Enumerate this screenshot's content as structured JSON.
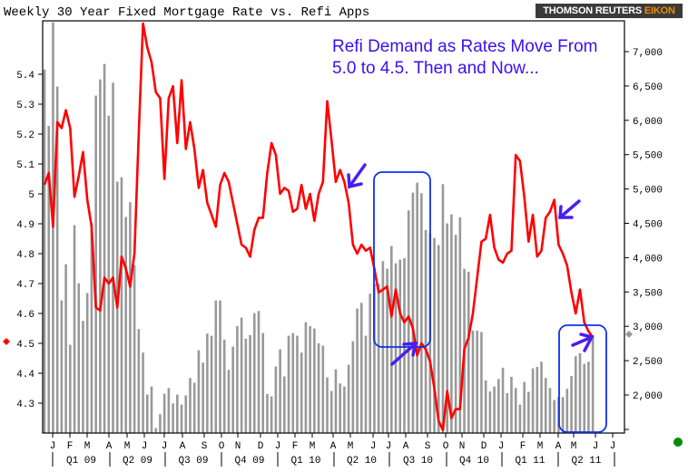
{
  "title": "Weekly 30 Year Fixed Mortgage Rate vs. Refi Apps",
  "logo": {
    "text": "THOMSON REUTERS EIKON",
    "brand": "THOMSON REUTERS",
    "product": "EIKON"
  },
  "annotation": {
    "line1": "Refi Demand as Rates Move From",
    "line2": "5.0 to 4.5.  Then and Now..."
  },
  "colors": {
    "rate_line": "#ff0000",
    "refi_bars": "#999999",
    "annotation": "#3a10f0",
    "highlight_box": "#1030f0",
    "status_dot": "#0a8a0a"
  },
  "chart_data": {
    "type": "bar+line",
    "title": "Weekly 30 Year Fixed Mortgage Rate vs. Refi Apps",
    "grid": false,
    "legend": "none",
    "left_axis": {
      "series": "rate",
      "range": [
        4.2,
        5.58
      ],
      "ticks": [
        "5.4",
        "5.3",
        "5.2",
        "5.1",
        "5",
        "4.9",
        "4.8",
        "4.7",
        "4.6",
        "4.5",
        "4.4",
        "4.3"
      ],
      "tick_values": [
        5.4,
        5.3,
        5.2,
        5.1,
        5.0,
        4.9,
        4.8,
        4.7,
        4.6,
        4.5,
        4.4,
        4.3
      ]
    },
    "right_axis": {
      "series": "refi",
      "range": [
        1500,
        7430
      ],
      "ticks": [
        "7,000",
        "6,500",
        "6,000",
        "5,500",
        "5,000",
        "4,500",
        "4,000",
        "3,500",
        "3,000",
        "2,500",
        "2,000"
      ],
      "tick_values": [
        7000,
        6500,
        6000,
        5500,
        5000,
        4500,
        4000,
        3500,
        3000,
        2500,
        2000
      ]
    },
    "month_labels": [
      "J",
      "F",
      "M",
      "A",
      "M",
      "J",
      "J",
      "A",
      "S",
      "O",
      "N",
      "D",
      "J",
      "F",
      "M",
      "A",
      "M",
      "J",
      "J",
      "A",
      "S",
      "O",
      "N",
      "D",
      "J",
      "F",
      "M",
      "A",
      "M",
      "J",
      "J"
    ],
    "quarter_labels": [
      "Q1 09",
      "Q2 09",
      "Q3 09",
      "Q4 09",
      "Q1 10",
      "Q2 10",
      "Q3 10",
      "Q4 10",
      "Q1 11",
      "Q2 11"
    ],
    "x": [
      "2009-01-02",
      "2009-01-09",
      "2009-01-16",
      "2009-01-23",
      "2009-01-30",
      "2009-02-06",
      "2009-02-13",
      "2009-02-20",
      "2009-02-27",
      "2009-03-06",
      "2009-03-13",
      "2009-03-20",
      "2009-03-27",
      "2009-04-03",
      "2009-04-10",
      "2009-04-17",
      "2009-04-24",
      "2009-05-01",
      "2009-05-08",
      "2009-05-15",
      "2009-05-22",
      "2009-05-29",
      "2009-06-05",
      "2009-06-12",
      "2009-06-19",
      "2009-06-26",
      "2009-07-03",
      "2009-07-10",
      "2009-07-17",
      "2009-07-24",
      "2009-07-31",
      "2009-08-07",
      "2009-08-14",
      "2009-08-21",
      "2009-08-28",
      "2009-09-04",
      "2009-09-11",
      "2009-09-18",
      "2009-09-25",
      "2009-10-02",
      "2009-10-09",
      "2009-10-16",
      "2009-10-23",
      "2009-10-30",
      "2009-11-06",
      "2009-11-13",
      "2009-11-20",
      "2009-11-27",
      "2009-12-04",
      "2009-12-11",
      "2009-12-18",
      "2009-12-25",
      "2010-01-01",
      "2010-01-08",
      "2010-01-15",
      "2010-01-22",
      "2010-01-29",
      "2010-02-05",
      "2010-02-12",
      "2010-02-19",
      "2010-02-26",
      "2010-03-05",
      "2010-03-12",
      "2010-03-19",
      "2010-03-26",
      "2010-04-02",
      "2010-04-09",
      "2010-04-16",
      "2010-04-23",
      "2010-04-30",
      "2010-05-07",
      "2010-05-14",
      "2010-05-21",
      "2010-05-28",
      "2010-06-04",
      "2010-06-11",
      "2010-06-18",
      "2010-06-25",
      "2010-07-02",
      "2010-07-09",
      "2010-07-16",
      "2010-07-23",
      "2010-07-30",
      "2010-08-06",
      "2010-08-13",
      "2010-08-20",
      "2010-08-27",
      "2010-09-03",
      "2010-09-10",
      "2010-09-17",
      "2010-09-24",
      "2010-10-01",
      "2010-10-08",
      "2010-10-15",
      "2010-10-22",
      "2010-10-29",
      "2010-11-05",
      "2010-11-12",
      "2010-11-19",
      "2010-11-26",
      "2010-12-03",
      "2010-12-10",
      "2010-12-17",
      "2010-12-24",
      "2010-12-31",
      "2011-01-07",
      "2011-01-14",
      "2011-01-21",
      "2011-01-28",
      "2011-02-04",
      "2011-02-11",
      "2011-02-18",
      "2011-02-25",
      "2011-03-04",
      "2011-03-11",
      "2011-03-18",
      "2011-03-25",
      "2011-04-01",
      "2011-04-08",
      "2011-04-15",
      "2011-04-22",
      "2011-04-29",
      "2011-05-06",
      "2011-05-13",
      "2011-05-20",
      "2011-05-27",
      "2011-06-03",
      "2011-06-10",
      "2011-06-17"
    ],
    "series": [
      {
        "key": "rate",
        "type": "line",
        "axis": "left",
        "values": [
          5.03,
          5.07,
          4.89,
          5.24,
          5.22,
          5.28,
          5.22,
          4.99,
          5.06,
          5.14,
          4.98,
          4.89,
          4.62,
          4.61,
          4.72,
          4.7,
          4.72,
          4.62,
          4.79,
          4.75,
          4.69,
          4.8,
          5.2,
          5.57,
          5.49,
          5.44,
          5.34,
          5.32,
          5.05,
          5.32,
          5.36,
          5.17,
          5.38,
          5.15,
          5.24,
          5.15,
          5.02,
          5.08,
          4.97,
          4.93,
          4.89,
          5.03,
          5.07,
          5.04,
          4.97,
          4.9,
          4.83,
          4.82,
          4.79,
          4.88,
          4.92,
          4.92,
          5.07,
          5.17,
          5.13,
          5.0,
          5.02,
          5.01,
          4.94,
          4.95,
          5.03,
          4.95,
          5.0,
          4.91,
          5.0,
          5.04,
          5.31,
          5.18,
          5.04,
          5.08,
          5.04,
          4.97,
          4.83,
          4.8,
          4.83,
          4.81,
          4.82,
          4.75,
          4.67,
          4.68,
          4.69,
          4.59,
          4.68,
          4.6,
          4.57,
          4.59,
          4.55,
          4.46,
          4.5,
          4.48,
          4.44,
          4.35,
          4.24,
          4.21,
          4.34,
          4.25,
          4.28,
          4.28,
          4.48,
          4.52,
          4.6,
          4.72,
          4.84,
          4.85,
          4.93,
          4.82,
          4.78,
          4.77,
          4.8,
          4.81,
          5.13,
          5.11,
          4.99,
          4.84,
          4.93,
          4.79,
          4.81,
          4.92,
          4.94,
          4.98,
          4.83,
          4.8,
          4.76,
          4.67,
          4.6,
          4.68,
          4.57,
          4.54,
          4.52
        ]
      },
      {
        "key": "refi",
        "type": "bar",
        "axis": "right",
        "values": [
          6741,
          5918,
          7427,
          6491,
          3377,
          3905,
          2731,
          4474,
          3628,
          3079,
          3484,
          4500,
          6359,
          6596,
          6820,
          6068,
          6548,
          5106,
          5172,
          4592,
          4807,
          3892,
          2960,
          2617,
          2006,
          2124,
          1520,
          1720,
          2019,
          2102,
          1878,
          2006,
          1860,
          1993,
          2248,
          2177,
          2652,
          2472,
          2894,
          2863,
          3377,
          3377,
          2806,
          2366,
          2705,
          3004,
          3127,
          2819,
          2872,
          3193,
          3224,
          2903,
          2014,
          1979,
          2415,
          2665,
          2270,
          2863,
          2903,
          2863,
          2617,
          3061,
          3004,
          2969,
          2753,
          2718,
          2256,
          2058,
          2375,
          2168,
          2124,
          2441,
          2784,
          3259,
          3342,
          2863,
          3475,
          3620,
          3620,
          3949,
          3839,
          4169,
          3918,
          3971,
          3993,
          4688,
          4947,
          5092,
          4938,
          4402,
          4358,
          4288,
          4182,
          5070,
          4499,
          4631,
          4332,
          4587,
          3839,
          3795,
          2938,
          2938,
          2916,
          2212,
          2050,
          2124,
          2234,
          2397,
          2028,
          2265,
          2102,
          1860,
          2190,
          2045,
          2388,
          2410,
          2485,
          2248,
          2102,
          1927,
          1970,
          1970,
          2089,
          2278,
          2564,
          2608,
          2454,
          2485,
          2872
        ]
      }
    ],
    "last_value_markers": {
      "rate": 4.52,
      "refi": 2872
    }
  }
}
